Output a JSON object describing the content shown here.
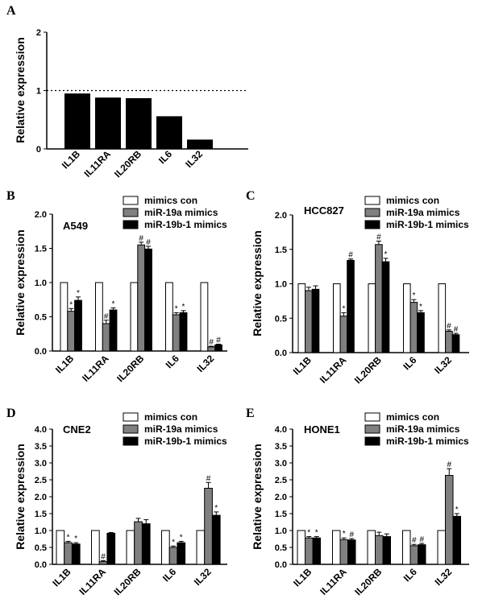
{
  "chart_data": [
    {
      "panel": "A",
      "type": "bar",
      "categories": [
        "IL1B",
        "IL11RA",
        "IL20RB",
        "IL6",
        "IL32"
      ],
      "values": [
        0.95,
        0.88,
        0.87,
        0.56,
        0.16
      ],
      "ylabel": "Relative expression",
      "ylim": [
        0,
        2
      ],
      "yticks": [
        "0",
        "1",
        "2"
      ],
      "reference_line": 1,
      "legend": "none",
      "grid": false
    },
    {
      "panel": "B",
      "type": "bar",
      "cell_line": "A549",
      "categories": [
        "IL1B",
        "IL11RA",
        "IL20RB",
        "IL6",
        "IL32"
      ],
      "series": [
        {
          "name": "mimics con",
          "values": [
            1.0,
            1.0,
            1.0,
            1.0,
            1.0
          ],
          "errors": [
            0,
            0,
            0,
            0,
            0
          ],
          "marks": [
            "",
            "",
            "",
            "",
            ""
          ]
        },
        {
          "name": "miR-19a mimics",
          "values": [
            0.58,
            0.4,
            1.55,
            0.53,
            0.06
          ],
          "errors": [
            0.04,
            0.05,
            0.04,
            0.03,
            0.01
          ],
          "marks": [
            "*",
            "#",
            "#",
            "*",
            "#"
          ]
        },
        {
          "name": "miR-19b-1 mimics",
          "values": [
            0.74,
            0.6,
            1.49,
            0.56,
            0.09
          ],
          "errors": [
            0.05,
            0.03,
            0.04,
            0.03,
            0.01
          ],
          "marks": [
            "*",
            "*",
            "#",
            "*",
            "#"
          ]
        }
      ],
      "ylabel": "Relative expression",
      "ylim": [
        0,
        2.0
      ],
      "yticks": [
        "0.0",
        "0.5",
        "1.0",
        "1.5",
        "2.0"
      ],
      "legend": "top-right",
      "grid": false
    },
    {
      "panel": "C",
      "type": "bar",
      "cell_line": "HCC827",
      "categories": [
        "IL1B",
        "IL11RA",
        "IL20RB",
        "IL6",
        "IL32"
      ],
      "series": [
        {
          "name": "mimics con",
          "values": [
            1.0,
            1.0,
            1.0,
            1.0,
            1.0
          ],
          "errors": [
            0,
            0,
            0,
            0,
            0
          ],
          "marks": [
            "",
            "",
            "",
            "",
            ""
          ]
        },
        {
          "name": "miR-19a mimics",
          "values": [
            0.9,
            0.53,
            1.57,
            0.73,
            0.31
          ],
          "errors": [
            0.05,
            0.05,
            0.05,
            0.04,
            0.02
          ],
          "marks": [
            "",
            "*",
            "#",
            "*",
            "#"
          ]
        },
        {
          "name": "miR-19b-1 mimics",
          "values": [
            0.92,
            1.34,
            1.32,
            0.58,
            0.26
          ],
          "errors": [
            0.05,
            0.02,
            0.05,
            0.03,
            0.02
          ],
          "marks": [
            "",
            "#",
            "*",
            "*",
            "#"
          ]
        }
      ],
      "ylabel": "Relative expression",
      "ylim": [
        0,
        2.0
      ],
      "yticks": [
        "0.0",
        "0.5",
        "1.0",
        "1.5",
        "2.0"
      ],
      "legend": "top-right",
      "grid": false
    },
    {
      "panel": "D",
      "type": "bar",
      "cell_line": "CNE2",
      "categories": [
        "IL1B",
        "IL11RA",
        "IL20RB",
        "IL6",
        "IL32"
      ],
      "series": [
        {
          "name": "mimics con",
          "values": [
            1.0,
            1.0,
            1.0,
            1.0,
            1.0
          ],
          "errors": [
            0,
            0,
            0,
            0,
            0
          ],
          "marks": [
            "",
            "",
            "",
            "",
            ""
          ]
        },
        {
          "name": "miR-19a mimics",
          "values": [
            0.64,
            0.08,
            1.26,
            0.5,
            2.25
          ],
          "errors": [
            0.04,
            0.03,
            0.1,
            0.04,
            0.17
          ],
          "marks": [
            "*",
            "#",
            "",
            "*",
            "#"
          ]
        },
        {
          "name": "miR-19b-1 mimics",
          "values": [
            0.6,
            0.92,
            1.2,
            0.64,
            1.45
          ],
          "errors": [
            0.04,
            0.02,
            0.12,
            0.04,
            0.1
          ],
          "marks": [
            "*",
            "",
            "",
            "*",
            "*"
          ]
        }
      ],
      "ylabel": "Relative expression",
      "ylim": [
        0,
        4.0
      ],
      "yticks": [
        "0.0",
        "0.5",
        "1.0",
        "1.5",
        "2.0",
        "2.5",
        "3.0",
        "3.5",
        "4.0"
      ],
      "legend": "top-right",
      "grid": false
    },
    {
      "panel": "E",
      "type": "bar",
      "cell_line": "HONE1",
      "categories": [
        "IL1B",
        "IL11RA",
        "IL20RB",
        "IL6",
        "IL32"
      ],
      "series": [
        {
          "name": "mimics con",
          "values": [
            1.0,
            1.0,
            1.0,
            1.0,
            1.0
          ],
          "errors": [
            0,
            0,
            0,
            0,
            0
          ],
          "marks": [
            "",
            "",
            "",
            "",
            ""
          ]
        },
        {
          "name": "miR-19a mimics",
          "values": [
            0.78,
            0.73,
            0.85,
            0.55,
            2.63
          ],
          "errors": [
            0.04,
            0.05,
            0.1,
            0.04,
            0.2
          ],
          "marks": [
            "*",
            "*",
            "",
            "#",
            "#"
          ]
        },
        {
          "name": "miR-19b-1 mimics",
          "values": [
            0.78,
            0.72,
            0.82,
            0.58,
            1.42
          ],
          "errors": [
            0.04,
            0.04,
            0.08,
            0.04,
            0.08
          ],
          "marks": [
            "*",
            "#",
            "",
            "#",
            "*"
          ]
        }
      ],
      "ylabel": "Relative expression",
      "ylim": [
        0,
        4.0
      ],
      "yticks": [
        "0.0",
        "0.5",
        "1.0",
        "1.5",
        "2.0",
        "2.5",
        "3.0",
        "3.5",
        "4.0"
      ],
      "legend": "top-right",
      "grid": false
    }
  ],
  "series_colors": [
    "#ffffff",
    "#808080",
    "#000000"
  ]
}
